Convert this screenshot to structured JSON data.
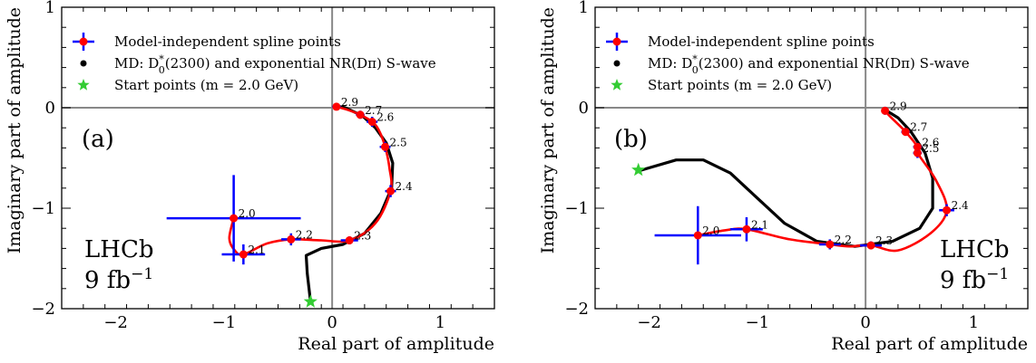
{
  "chart_data": [
    {
      "type": "scatter",
      "panel_tag": "(a)",
      "xlabel": "Real part of amplitude",
      "ylabel": "Imaginary part of amplitude",
      "xlim": [
        -2.5,
        1.5
      ],
      "ylim": [
        -2.0,
        1.0
      ],
      "xticks": [
        -2,
        -1,
        0,
        1
      ],
      "yticks": [
        -2,
        -1,
        0,
        1
      ],
      "xtick_labels": [
        "−2",
        "−1",
        "0",
        "1"
      ],
      "ytick_labels": [
        "−2",
        "−1",
        "0",
        "1"
      ],
      "grid": false,
      "watermark": [
        "LHCb",
        "9 fb"
      ],
      "watermark_sup": "−1",
      "legend_position": "top-left",
      "legend": [
        {
          "text": "Model-independent spline points",
          "marker": "errorbar"
        },
        {
          "text": "MD: D",
          "sub": "0",
          "sup": "*",
          "rest": "(2300) and exponential NR(Dπ) S-wave",
          "marker": "dot"
        },
        {
          "text": "Start points (m = 2.0 GeV)",
          "marker": "star"
        }
      ],
      "series": [
        {
          "name": "Model-independent spline points",
          "color": "#0000ff",
          "point_color": "#ff0000",
          "points": [
            {
              "label": "2.0",
              "x": -0.91,
              "y": -1.1,
              "xerr": 0.62,
              "yerr": 0.43
            },
            {
              "label": "2.1",
              "x": -0.82,
              "y": -1.46,
              "xerr": 0.2,
              "yerr": 0.1
            },
            {
              "label": "2.2",
              "x": -0.38,
              "y": -1.31,
              "xerr": 0.09,
              "yerr": 0.06
            },
            {
              "label": "2.3",
              "x": 0.16,
              "y": -1.32,
              "xerr": 0.08,
              "yerr": 0.04
            },
            {
              "label": "2.4",
              "x": 0.54,
              "y": -0.83,
              "xerr": 0.05,
              "yerr": 0.06
            },
            {
              "label": "2.5",
              "x": 0.49,
              "y": -0.39,
              "xerr": 0.05,
              "yerr": 0.05
            },
            {
              "label": "2.6",
              "x": 0.37,
              "y": -0.14,
              "xerr": 0.05,
              "yerr": 0.05
            },
            {
              "label": "2.7",
              "x": 0.26,
              "y": -0.07,
              "xerr": 0.04,
              "yerr": 0.04
            },
            {
              "label": "2.9",
              "x": 0.04,
              "y": 0.01,
              "xerr": 0.04,
              "yerr": 0.03
            }
          ],
          "spline": [
            [
              -0.91,
              -1.1
            ],
            [
              -0.95,
              -1.3
            ],
            [
              -0.9,
              -1.42
            ],
            [
              -0.82,
              -1.46
            ],
            [
              -0.6,
              -1.35
            ],
            [
              -0.38,
              -1.31
            ],
            [
              -0.1,
              -1.32
            ],
            [
              0.16,
              -1.32
            ],
            [
              0.4,
              -1.15
            ],
            [
              0.54,
              -0.83
            ],
            [
              0.53,
              -0.6
            ],
            [
              0.49,
              -0.39
            ],
            [
              0.43,
              -0.22
            ],
            [
              0.37,
              -0.14
            ],
            [
              0.26,
              -0.07
            ],
            [
              0.14,
              -0.02
            ],
            [
              0.04,
              0.01
            ]
          ]
        },
        {
          "name": "MD: D0*(2300) and exponential NR(Dπ) S-wave",
          "color": "#000000",
          "curve": [
            [
              -0.2,
              -1.93
            ],
            [
              -0.23,
              -1.65
            ],
            [
              -0.24,
              -1.47
            ],
            [
              -0.1,
              -1.4
            ],
            [
              0.1,
              -1.36
            ],
            [
              0.3,
              -1.25
            ],
            [
              0.45,
              -1.05
            ],
            [
              0.55,
              -0.8
            ],
            [
              0.56,
              -0.55
            ],
            [
              0.5,
              -0.35
            ],
            [
              0.4,
              -0.2
            ],
            [
              0.28,
              -0.08
            ],
            [
              0.12,
              0.0
            ],
            [
              0.03,
              0.02
            ]
          ]
        },
        {
          "name": "Start points (m = 2.0 GeV)",
          "color": "#33cc33",
          "points": [
            {
              "x": -0.2,
              "y": -1.93
            }
          ]
        }
      ]
    },
    {
      "type": "scatter",
      "panel_tag": "(b)",
      "xlabel": "Real part of amplitude",
      "ylabel": "Imaginary part of amplitude",
      "xlim": [
        -2.5,
        1.5
      ],
      "ylim": [
        -2.0,
        1.0
      ],
      "xticks": [
        -2,
        -1,
        0,
        1
      ],
      "yticks": [
        -2,
        -1,
        0,
        1
      ],
      "xtick_labels": [
        "−2",
        "−1",
        "0",
        "1"
      ],
      "ytick_labels": [
        "−2",
        "−1",
        "0",
        "1"
      ],
      "grid": false,
      "watermark": [
        "LHCb",
        "9 fb"
      ],
      "watermark_sup": "−1",
      "legend_position": "top-left",
      "legend": [
        {
          "text": "Model-independent spline points",
          "marker": "errorbar"
        },
        {
          "text": "MD: D",
          "sub": "0",
          "sup": "*",
          "rest": "(2300) and exponential NR(Dπ) S-wave",
          "marker": "dot"
        },
        {
          "text": "Start points (m = 2.0 GeV)",
          "marker": "star"
        }
      ],
      "series": [
        {
          "name": "Model-independent spline points",
          "color": "#0000ff",
          "point_color": "#ff0000",
          "points": [
            {
              "label": "2.0",
              "x": -1.55,
              "y": -1.27,
              "xerr": 0.4,
              "yerr": 0.29
            },
            {
              "label": "2.1",
              "x": -1.1,
              "y": -1.21,
              "xerr": 0.15,
              "yerr": 0.12
            },
            {
              "label": "2.2",
              "x": -0.33,
              "y": -1.36,
              "xerr": 0.1,
              "yerr": 0.05
            },
            {
              "label": "2.3",
              "x": 0.05,
              "y": -1.37,
              "xerr": 0.1,
              "yerr": 0.04
            },
            {
              "label": "2.4",
              "x": 0.75,
              "y": -1.02,
              "xerr": 0.07,
              "yerr": 0.06
            },
            {
              "label": "2.5",
              "x": 0.48,
              "y": -0.45,
              "xerr": 0.04,
              "yerr": 0.05
            },
            {
              "label": "2.6",
              "x": 0.48,
              "y": -0.39,
              "xerr": 0.04,
              "yerr": 0.04
            },
            {
              "label": "2.7",
              "x": 0.37,
              "y": -0.24,
              "xerr": 0.04,
              "yerr": 0.04
            },
            {
              "label": "2.9",
              "x": 0.18,
              "y": -0.03,
              "xerr": 0.03,
              "yerr": 0.04
            }
          ],
          "spline": [
            [
              -1.55,
              -1.27
            ],
            [
              -1.3,
              -1.22
            ],
            [
              -1.1,
              -1.21
            ],
            [
              -0.7,
              -1.31
            ],
            [
              -0.33,
              -1.36
            ],
            [
              -0.15,
              -1.38
            ],
            [
              0.05,
              -1.37
            ],
            [
              0.3,
              -1.42
            ],
            [
              0.6,
              -1.25
            ],
            [
              0.75,
              -1.02
            ],
            [
              0.65,
              -0.72
            ],
            [
              0.48,
              -0.45
            ],
            [
              0.48,
              -0.39
            ],
            [
              0.37,
              -0.24
            ],
            [
              0.22,
              -0.08
            ],
            [
              0.18,
              -0.03
            ]
          ]
        },
        {
          "name": "MD: D0*(2300) and exponential NR(Dπ) S-wave",
          "color": "#000000",
          "curve": [
            [
              -2.1,
              -0.63
            ],
            [
              -1.75,
              -0.52
            ],
            [
              -1.5,
              -0.52
            ],
            [
              -1.25,
              -0.65
            ],
            [
              -1.0,
              -0.9
            ],
            [
              -0.75,
              -1.15
            ],
            [
              -0.45,
              -1.33
            ],
            [
              -0.1,
              -1.38
            ],
            [
              0.25,
              -1.33
            ],
            [
              0.5,
              -1.2
            ],
            [
              0.62,
              -1.0
            ],
            [
              0.62,
              -0.7
            ],
            [
              0.55,
              -0.45
            ],
            [
              0.42,
              -0.24
            ],
            [
              0.3,
              -0.1
            ],
            [
              0.18,
              -0.02
            ]
          ]
        },
        {
          "name": "Start points (m = 2.0 GeV)",
          "color": "#33cc33",
          "points": [
            {
              "x": -2.1,
              "y": -0.62
            }
          ]
        }
      ]
    }
  ]
}
